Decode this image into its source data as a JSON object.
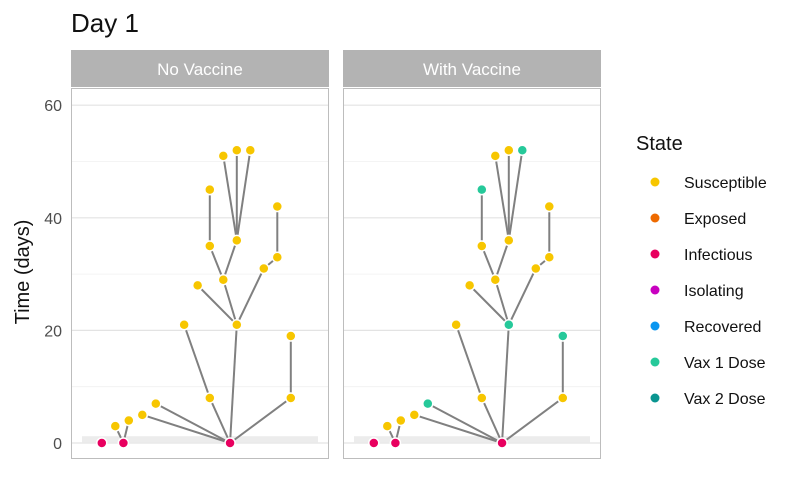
{
  "title": "Day 1",
  "colors": {
    "strip_bg": "#b3b3b3",
    "panel_border": "#bdbdbd",
    "grid_major": "#e3e3e3",
    "grid_minor": "#f0f0f0",
    "edge": "#808080",
    "baseline": "#ececec"
  },
  "chart_data": {
    "type": "scatter",
    "subtype": "faceted transmission tree",
    "ylabel": "Time (days)",
    "ylim": [
      -3,
      63
    ],
    "yticks": [
      0,
      20,
      40,
      60
    ],
    "grid": true,
    "legend_position": "right",
    "legend": {
      "title": "State",
      "items": [
        {
          "label": "Susceptible",
          "color": "#f7c600"
        },
        {
          "label": "Exposed",
          "color": "#ee6a00"
        },
        {
          "label": "Infectious",
          "color": "#e8005f"
        },
        {
          "label": "Isolating",
          "color": "#c800c0"
        },
        {
          "label": "Recovered",
          "color": "#0a96f0"
        },
        {
          "label": "Vax 1 Dose",
          "color": "#26c99a"
        },
        {
          "label": "Vax 2 Dose",
          "color": "#0a9590"
        }
      ]
    },
    "panels": [
      {
        "label": "No Vaccine",
        "nodes": [
          {
            "id": "a",
            "x": 0.8,
            "y": 0,
            "state": "Infectious"
          },
          {
            "id": "b",
            "x": 1.8,
            "y": 3,
            "state": "Susceptible"
          },
          {
            "id": "c",
            "x": 2.4,
            "y": 0,
            "state": "Infectious"
          },
          {
            "id": "d",
            "x": 2.8,
            "y": 4,
            "state": "Susceptible"
          },
          {
            "id": "e",
            "x": 3.8,
            "y": 5,
            "state": "Susceptible"
          },
          {
            "id": "f",
            "x": 4.8,
            "y": 7,
            "state": "Susceptible"
          },
          {
            "id": "g",
            "x": 6.9,
            "y": 21,
            "state": "Susceptible"
          },
          {
            "id": "h",
            "x": 7.9,
            "y": 28,
            "state": "Susceptible"
          },
          {
            "id": "i",
            "x": 8.8,
            "y": 8,
            "state": "Susceptible"
          },
          {
            "id": "j",
            "x": 8.8,
            "y": 35,
            "state": "Susceptible"
          },
          {
            "id": "k",
            "x": 8.8,
            "y": 45,
            "state": "Susceptible"
          },
          {
            "id": "l",
            "x": 9.8,
            "y": 29,
            "state": "Susceptible"
          },
          {
            "id": "m",
            "x": 9.8,
            "y": 51,
            "state": "Susceptible"
          },
          {
            "id": "n",
            "x": 10.3,
            "y": 0,
            "state": "Infectious"
          },
          {
            "id": "o",
            "x": 10.8,
            "y": 21,
            "state": "Susceptible"
          },
          {
            "id": "p",
            "x": 10.8,
            "y": 36,
            "state": "Susceptible"
          },
          {
            "id": "q",
            "x": 10.8,
            "y": 52,
            "state": "Susceptible"
          },
          {
            "id": "r",
            "x": 11.8,
            "y": 52,
            "state": "Susceptible"
          },
          {
            "id": "s",
            "x": 12.8,
            "y": 31,
            "state": "Susceptible"
          },
          {
            "id": "t",
            "x": 13.8,
            "y": 33,
            "state": "Susceptible"
          },
          {
            "id": "u",
            "x": 13.8,
            "y": 42,
            "state": "Susceptible"
          },
          {
            "id": "v",
            "x": 14.8,
            "y": 8,
            "state": "Susceptible"
          },
          {
            "id": "w",
            "x": 14.8,
            "y": 19,
            "state": "Susceptible"
          }
        ],
        "edges": [
          [
            "c",
            "b"
          ],
          [
            "c",
            "d"
          ],
          [
            "n",
            "e"
          ],
          [
            "n",
            "f"
          ],
          [
            "n",
            "i"
          ],
          [
            "n",
            "o"
          ],
          [
            "n",
            "v"
          ],
          [
            "i",
            "g"
          ],
          [
            "o",
            "h"
          ],
          [
            "o",
            "l"
          ],
          [
            "l",
            "j"
          ],
          [
            "j",
            "k"
          ],
          [
            "o",
            "s"
          ],
          [
            "s",
            "t"
          ],
          [
            "t",
            "u"
          ],
          [
            "l",
            "p"
          ],
          [
            "p",
            "m"
          ],
          [
            "p",
            "q"
          ],
          [
            "p",
            "r"
          ],
          [
            "v",
            "w"
          ]
        ]
      },
      {
        "label": "With Vaccine",
        "nodes": [
          {
            "id": "a",
            "x": 0.8,
            "y": 0,
            "state": "Infectious"
          },
          {
            "id": "b",
            "x": 1.8,
            "y": 3,
            "state": "Susceptible"
          },
          {
            "id": "c",
            "x": 2.4,
            "y": 0,
            "state": "Infectious"
          },
          {
            "id": "d",
            "x": 2.8,
            "y": 4,
            "state": "Susceptible"
          },
          {
            "id": "e",
            "x": 3.8,
            "y": 5,
            "state": "Susceptible"
          },
          {
            "id": "f",
            "x": 4.8,
            "y": 7,
            "state": "Vax 1 Dose"
          },
          {
            "id": "g",
            "x": 6.9,
            "y": 21,
            "state": "Susceptible"
          },
          {
            "id": "h",
            "x": 7.9,
            "y": 28,
            "state": "Susceptible"
          },
          {
            "id": "i",
            "x": 8.8,
            "y": 8,
            "state": "Susceptible"
          },
          {
            "id": "j",
            "x": 8.8,
            "y": 35,
            "state": "Susceptible"
          },
          {
            "id": "k",
            "x": 8.8,
            "y": 45,
            "state": "Vax 1 Dose"
          },
          {
            "id": "l",
            "x": 9.8,
            "y": 29,
            "state": "Susceptible"
          },
          {
            "id": "m",
            "x": 9.8,
            "y": 51,
            "state": "Susceptible"
          },
          {
            "id": "n",
            "x": 10.3,
            "y": 0,
            "state": "Infectious"
          },
          {
            "id": "o",
            "x": 10.8,
            "y": 21,
            "state": "Vax 1 Dose"
          },
          {
            "id": "p",
            "x": 10.8,
            "y": 36,
            "state": "Susceptible"
          },
          {
            "id": "q",
            "x": 10.8,
            "y": 52,
            "state": "Susceptible"
          },
          {
            "id": "r",
            "x": 11.8,
            "y": 52,
            "state": "Vax 1 Dose"
          },
          {
            "id": "s",
            "x": 12.8,
            "y": 31,
            "state": "Susceptible"
          },
          {
            "id": "t",
            "x": 13.8,
            "y": 33,
            "state": "Susceptible"
          },
          {
            "id": "u",
            "x": 13.8,
            "y": 42,
            "state": "Susceptible"
          },
          {
            "id": "v",
            "x": 14.8,
            "y": 8,
            "state": "Susceptible"
          },
          {
            "id": "w",
            "x": 14.8,
            "y": 19,
            "state": "Vax 1 Dose"
          }
        ],
        "edges": [
          [
            "c",
            "b"
          ],
          [
            "c",
            "d"
          ],
          [
            "n",
            "e"
          ],
          [
            "n",
            "f"
          ],
          [
            "n",
            "i"
          ],
          [
            "n",
            "o"
          ],
          [
            "n",
            "v"
          ],
          [
            "i",
            "g"
          ],
          [
            "o",
            "h"
          ],
          [
            "o",
            "l"
          ],
          [
            "l",
            "j"
          ],
          [
            "j",
            "k"
          ],
          [
            "o",
            "s"
          ],
          [
            "s",
            "t"
          ],
          [
            "t",
            "u"
          ],
          [
            "l",
            "p"
          ],
          [
            "p",
            "m"
          ],
          [
            "p",
            "q"
          ],
          [
            "p",
            "r"
          ],
          [
            "v",
            "w"
          ]
        ]
      }
    ]
  }
}
